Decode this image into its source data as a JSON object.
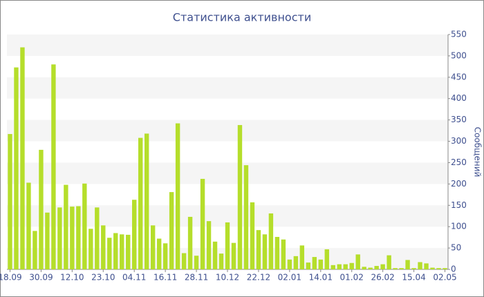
{
  "chart_data": {
    "type": "bar",
    "title": "Статистика активности",
    "y_label": "Сообщений",
    "categories": [
      "18.09",
      null,
      null,
      null,
      null,
      "30.09",
      null,
      null,
      null,
      null,
      "12.10",
      null,
      null,
      null,
      null,
      "23.10",
      null,
      null,
      null,
      null,
      "04.11",
      null,
      null,
      null,
      null,
      "16.11",
      null,
      null,
      null,
      null,
      "28.11",
      null,
      null,
      null,
      null,
      "10.12",
      null,
      null,
      null,
      null,
      "22.12",
      null,
      null,
      null,
      null,
      "02.01",
      null,
      null,
      null,
      null,
      "14.01",
      null,
      null,
      null,
      null,
      "01.02",
      null,
      null,
      null,
      null,
      "26.02",
      null,
      null,
      null,
      null,
      "15.04",
      null,
      null,
      null,
      null,
      "02.05"
    ],
    "values": [
      317,
      473,
      520,
      203,
      90,
      280,
      133,
      480,
      145,
      198,
      147,
      148,
      201,
      95,
      145,
      103,
      74,
      85,
      82,
      81,
      163,
      308,
      318,
      103,
      72,
      61,
      181,
      342,
      38,
      123,
      32,
      212,
      113,
      65,
      37,
      110,
      62,
      338,
      244,
      157,
      92,
      82,
      131,
      76,
      70,
      23,
      31,
      56,
      16,
      29,
      23,
      47,
      10,
      12,
      12,
      15,
      35,
      6,
      4,
      8,
      12,
      33,
      3,
      3,
      22,
      3,
      17,
      14,
      4,
      3,
      3
    ],
    "color": "#b5de2b",
    "ylim": [
      0,
      550
    ],
    "yticks": [
      0,
      50,
      100,
      150,
      200,
      250,
      300,
      350,
      400,
      450,
      500,
      550
    ],
    "grid": true
  }
}
